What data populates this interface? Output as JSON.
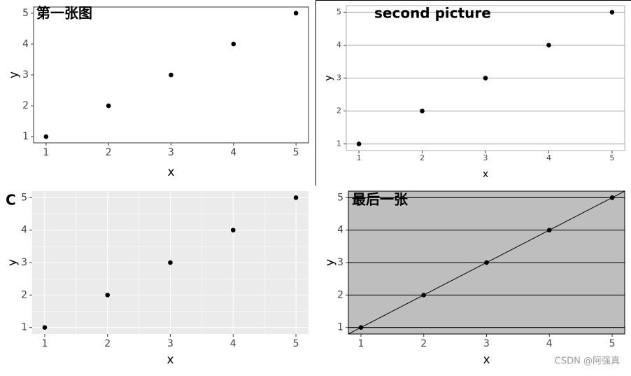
{
  "chart_data": [
    {
      "type": "scatter",
      "tag": "第一张图",
      "x": [
        1,
        2,
        3,
        4,
        5
      ],
      "y": [
        1,
        2,
        3,
        4,
        5
      ],
      "xlabel": "x",
      "ylabel": "y",
      "xlim": [
        0.8,
        5.2
      ],
      "ylim": [
        0.8,
        5.2
      ],
      "xticks": [
        1,
        2,
        3,
        4,
        5
      ],
      "yticks": [
        1,
        2,
        3,
        4,
        5
      ],
      "background": "#ffffff",
      "border": "#333333",
      "grid": "none",
      "point_color": "#000000"
    },
    {
      "type": "scatter",
      "title": "second picture",
      "x": [
        1,
        2,
        3,
        4,
        5
      ],
      "y": [
        1,
        2,
        3,
        4,
        5
      ],
      "xlabel": "x",
      "ylabel": "y",
      "xlim": [
        0.8,
        5.2
      ],
      "ylim": [
        0.8,
        5.2
      ],
      "xticks": [
        1,
        2,
        3,
        4,
        5
      ],
      "yticks": [
        1,
        2,
        3,
        4,
        5
      ],
      "background": "#ffffff",
      "border": "#aaaaaa",
      "grid": "y",
      "grid_color": "#aaaaaa",
      "point_color": "#000000"
    },
    {
      "type": "scatter",
      "tag": "C",
      "x": [
        1,
        2,
        3,
        4,
        5
      ],
      "y": [
        1,
        2,
        3,
        4,
        5
      ],
      "xlabel": "x",
      "ylabel": "y",
      "xlim": [
        0.8,
        5.2
      ],
      "ylim": [
        0.8,
        5.2
      ],
      "xticks": [
        1,
        2,
        3,
        4,
        5
      ],
      "yticks": [
        1,
        2,
        3,
        4,
        5
      ],
      "background": "#ebebeb",
      "border": "none",
      "grid": "both",
      "minor_grid": true,
      "grid_color": "#ffffff",
      "point_color": "#000000"
    },
    {
      "type": "scatter",
      "tag": "最后一张",
      "x": [
        1,
        2,
        3,
        4,
        5
      ],
      "y": [
        1,
        2,
        3,
        4,
        5
      ],
      "xlabel": "x",
      "ylabel": "y",
      "xlim": [
        0.8,
        5.2
      ],
      "ylim": [
        0.8,
        5.2
      ],
      "xticks": [
        1,
        2,
        3,
        4,
        5
      ],
      "yticks": [
        1,
        2,
        3,
        4,
        5
      ],
      "background": "#bebebe",
      "border": "#000000",
      "grid": "y",
      "grid_color": "#000000",
      "point_color": "#000000",
      "abline": {
        "intercept": 0,
        "slope": 1
      }
    }
  ],
  "watermark": "CSDN @阿强真"
}
